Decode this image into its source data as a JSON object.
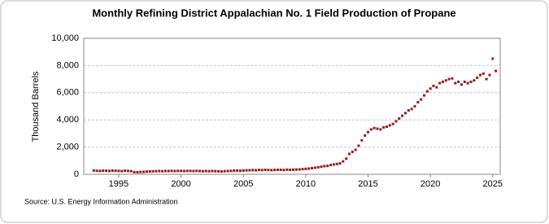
{
  "chart_data": {
    "type": "scatter",
    "title": "Monthly Refining District Appalachian No. 1 Field Production of Propane",
    "y_label": "Thousand Barrels",
    "source": "Source: U.S. Energy Information Administration",
    "color": "#9b1b1b",
    "grid": true,
    "xlim": [
      1992.2,
      2025.6
    ],
    "xticks": [
      1995,
      2000,
      2005,
      2010,
      2015,
      2020,
      2025
    ],
    "ylim": [
      0,
      10000
    ],
    "yticks": [
      0,
      {
        "value": 2000,
        "label": "2,000"
      },
      {
        "value": 4000,
        "label": "4,000"
      },
      {
        "value": 6000,
        "label": "6,000"
      },
      {
        "value": 8000,
        "label": "8,000"
      },
      {
        "value": 10000,
        "label": "10,000"
      }
    ],
    "x": [
      1993,
      1993.25,
      1993.5,
      1993.75,
      1994,
      1994.25,
      1994.5,
      1994.75,
      1995,
      1995.25,
      1995.5,
      1995.75,
      1996,
      1996.25,
      1996.5,
      1996.75,
      1997,
      1997.25,
      1997.5,
      1997.75,
      1998,
      1998.25,
      1998.5,
      1998.75,
      1999,
      1999.25,
      1999.5,
      1999.75,
      2000,
      2000.25,
      2000.5,
      2000.75,
      2001,
      2001.25,
      2001.5,
      2001.75,
      2002,
      2002.25,
      2002.5,
      2002.75,
      2003,
      2003.25,
      2003.5,
      2003.75,
      2004,
      2004.25,
      2004.5,
      2004.75,
      2005,
      2005.25,
      2005.5,
      2005.75,
      2006,
      2006.25,
      2006.5,
      2006.75,
      2007,
      2007.25,
      2007.5,
      2007.75,
      2008,
      2008.25,
      2008.5,
      2008.75,
      2009,
      2009.25,
      2009.5,
      2009.75,
      2010,
      2010.25,
      2010.5,
      2010.75,
      2011,
      2011.25,
      2011.5,
      2011.75,
      2012,
      2012.25,
      2012.5,
      2012.75,
      2013,
      2013.25,
      2013.5,
      2013.75,
      2014,
      2014.25,
      2014.5,
      2014.75,
      2015,
      2015.25,
      2015.5,
      2015.75,
      2016,
      2016.25,
      2016.5,
      2016.75,
      2017,
      2017.25,
      2017.5,
      2017.75,
      2018,
      2018.25,
      2018.5,
      2018.75,
      2019,
      2019.25,
      2019.5,
      2019.75,
      2020,
      2020.25,
      2020.5,
      2020.75,
      2021,
      2021.25,
      2021.5,
      2021.75,
      2022,
      2022.25,
      2022.5,
      2022.75,
      2023,
      2023.25,
      2023.5,
      2023.75,
      2024,
      2024.25,
      2024.5,
      2024.75,
      2025,
      2025.25
    ],
    "values": [
      280,
      260,
      250,
      270,
      260,
      250,
      270,
      260,
      250,
      240,
      260,
      250,
      230,
      160,
      150,
      170,
      180,
      200,
      210,
      220,
      230,
      240,
      230,
      240,
      240,
      250,
      240,
      250,
      250,
      240,
      250,
      250,
      240,
      250,
      240,
      230,
      240,
      230,
      240,
      230,
      220,
      210,
      230,
      240,
      250,
      270,
      280,
      260,
      280,
      290,
      300,
      310,
      300,
      320,
      310,
      330,
      320,
      310,
      320,
      330,
      330,
      320,
      340,
      330,
      340,
      350,
      360,
      380,
      400,
      420,
      450,
      480,
      520,
      560,
      600,
      620,
      680,
      720,
      760,
      800,
      950,
      1150,
      1500,
      1650,
      1800,
      2100,
      2500,
      2850,
      3100,
      3300,
      3400,
      3350,
      3300,
      3450,
      3500,
      3600,
      3700,
      3900,
      4100,
      4300,
      4500,
      4700,
      4800,
      5000,
      5300,
      5500,
      5800,
      6100,
      6300,
      6500,
      6400,
      6700,
      6800,
      6900,
      7000,
      7050,
      6700,
      6800,
      6600,
      6800,
      6700,
      6800,
      6900,
      7100,
      7300,
      7400,
      7000,
      7300,
      8500,
      7600
    ]
  }
}
